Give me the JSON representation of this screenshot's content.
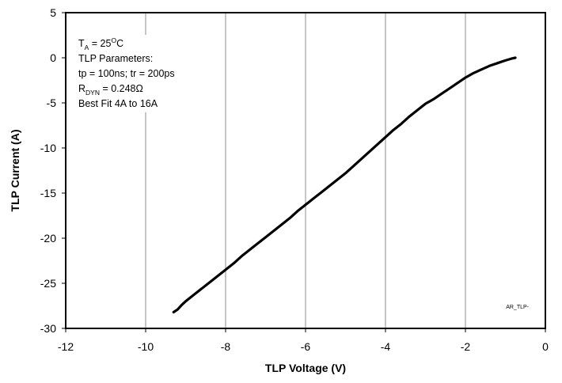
{
  "chart_data": {
    "type": "line",
    "xlabel": "TLP Voltage (V)",
    "ylabel": "TLP Current (A)",
    "xlim": [
      -12,
      0
    ],
    "ylim": [
      -30,
      5
    ],
    "x_ticks": [
      -12,
      -10,
      -8,
      -6,
      -4,
      -2,
      0
    ],
    "y_ticks": [
      5,
      0,
      -5,
      -10,
      -15,
      -20,
      -25,
      -30
    ],
    "grid": "vertical",
    "line_color": "#000000",
    "annotation_placement": "top-left",
    "annotation": {
      "line1": {
        "base": "T",
        "sub": "A",
        "rest": " = 25",
        "sup": "O",
        "tail": "C"
      },
      "line2": "TLP Parameters:",
      "line3": "tp = 100ns; tr = 200ps",
      "line4": {
        "base": "R",
        "sub": "DYN",
        "rest": " = 0.248Ω"
      },
      "line5": "Best Fit 4A to 16A"
    },
    "watermark": "AR_TLP-",
    "series": [
      {
        "x": [
          -0.75,
          -0.85,
          -1.0,
          -1.2,
          -1.4,
          -1.6,
          -1.8,
          -2.0,
          -2.2,
          -2.4,
          -2.6,
          -2.8,
          -3.0,
          -3.2,
          -3.4,
          -3.6,
          -3.8,
          -4.0,
          -4.2,
          -4.4,
          -4.6,
          -4.8,
          -5.0,
          -5.2,
          -5.4,
          -5.6,
          -5.8,
          -6.0,
          -6.2,
          -6.4,
          -6.6,
          -6.8,
          -7.0,
          -7.2,
          -7.4,
          -7.6,
          -7.8,
          -8.0,
          -8.2,
          -8.4,
          -8.6,
          -8.8,
          -9.0,
          -9.1,
          -9.2,
          -9.3
        ],
        "y": [
          0.0,
          -0.1,
          -0.3,
          -0.6,
          -0.9,
          -1.3,
          -1.7,
          -2.2,
          -2.8,
          -3.4,
          -4.0,
          -4.6,
          -5.1,
          -5.8,
          -6.5,
          -7.3,
          -8.0,
          -8.8,
          -9.6,
          -10.4,
          -11.2,
          -12.0,
          -12.8,
          -13.5,
          -14.2,
          -14.9,
          -15.6,
          -16.3,
          -17.0,
          -17.8,
          -18.5,
          -19.2,
          -19.9,
          -20.6,
          -21.3,
          -22.0,
          -22.8,
          -23.5,
          -24.2,
          -24.9,
          -25.6,
          -26.3,
          -27.0,
          -27.4,
          -27.9,
          -28.2
        ]
      }
    ]
  }
}
